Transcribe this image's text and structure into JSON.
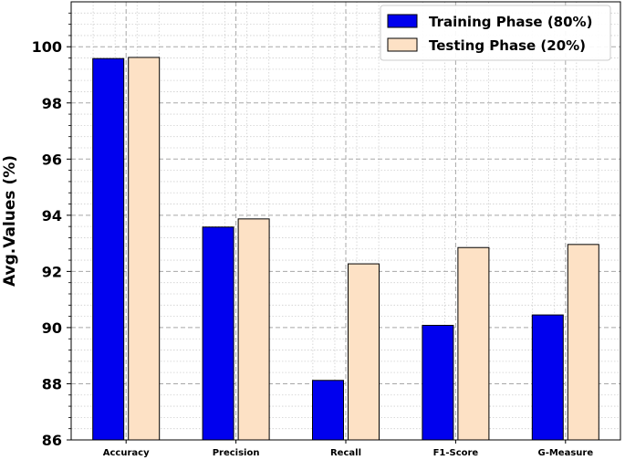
{
  "chart_data": {
    "type": "bar",
    "categories": [
      "Accuracy",
      "Precision",
      "Recall",
      "F1-Score",
      "G-Measure"
    ],
    "series": [
      {
        "name": "Training Phase (80%)",
        "values": [
          99.58,
          93.58,
          88.12,
          90.08,
          90.45
        ],
        "color": "#0000ee"
      },
      {
        "name": "Testing Phase (20%)",
        "values": [
          99.62,
          93.87,
          92.27,
          92.85,
          92.96
        ],
        "color": "#fde1c5"
      }
    ],
    "title": "",
    "xlabel": "",
    "ylabel": "Avg.Values (%)",
    "ylim": [
      86,
      101.6
    ],
    "yticks": [
      86,
      88,
      90,
      92,
      94,
      96,
      98,
      100
    ],
    "grid": true,
    "legend_position": "top-right"
  }
}
